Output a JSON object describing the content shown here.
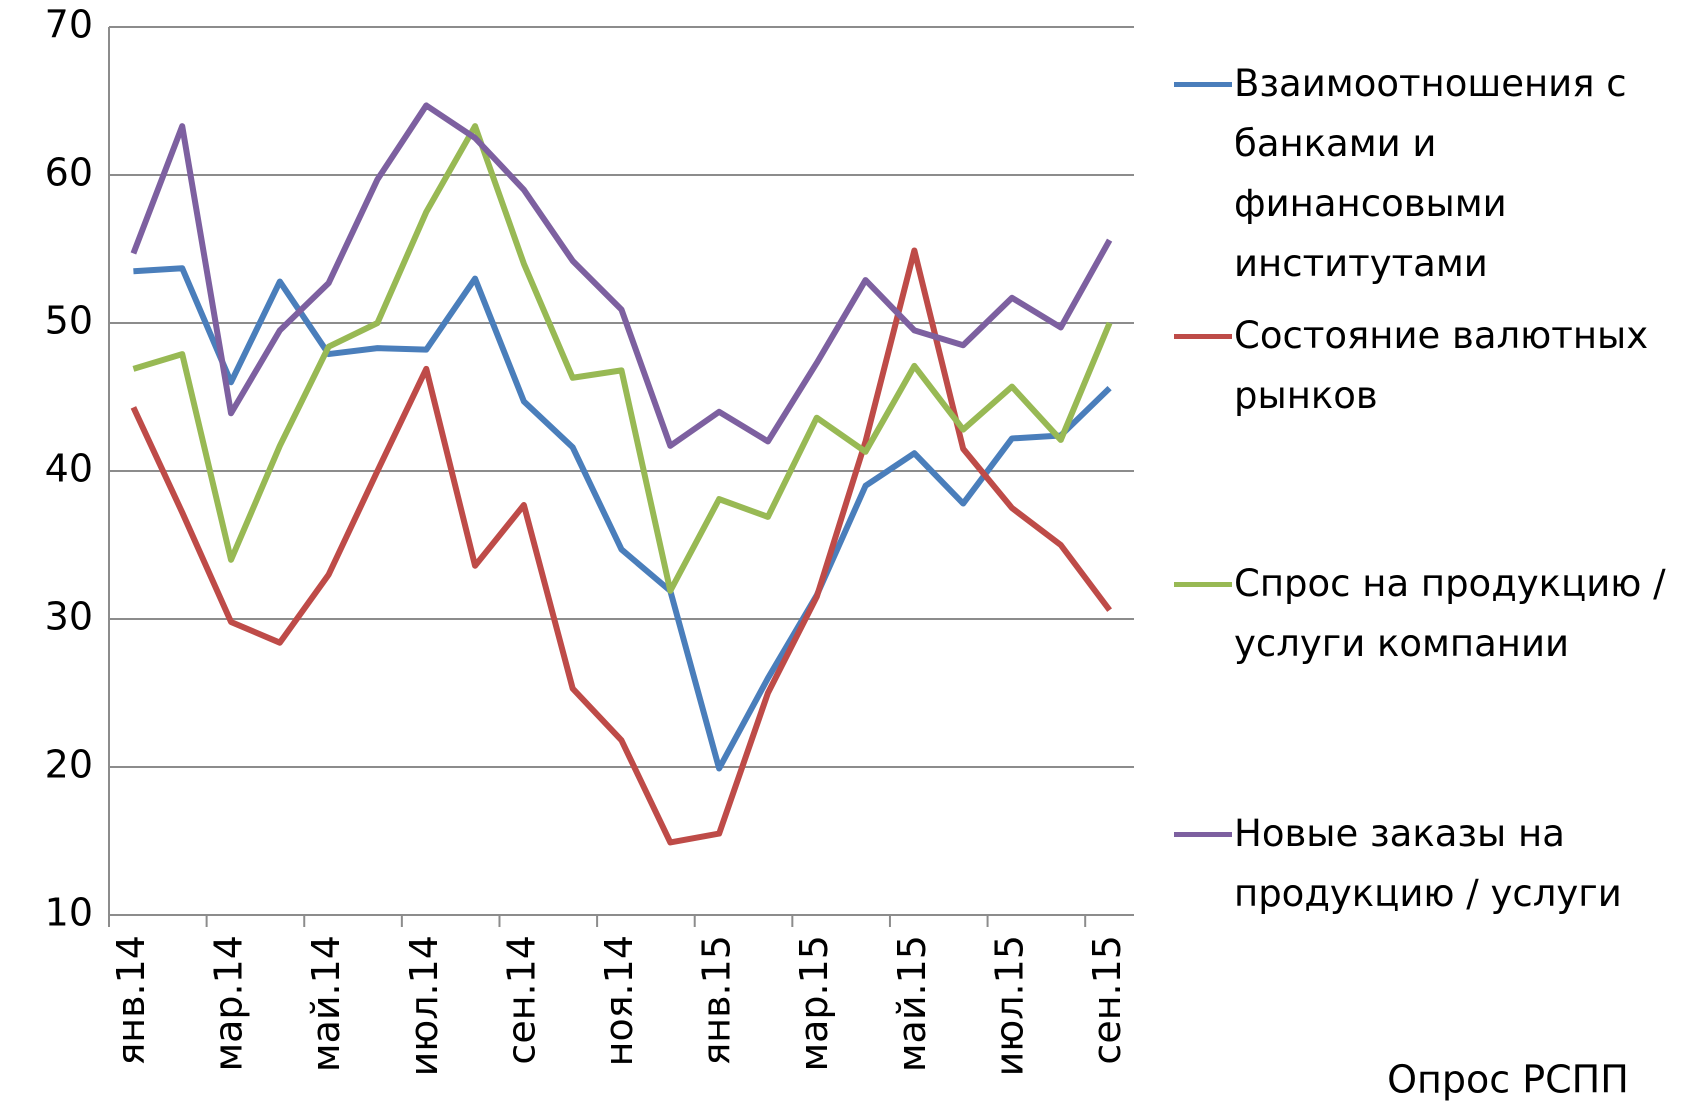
{
  "chart_data": {
    "type": "line",
    "categories": [
      "янв.14",
      null,
      "мар.14",
      null,
      "май.14",
      null,
      "июл.14",
      null,
      "сен.14",
      null,
      "ноя.14",
      null,
      "янв.15",
      null,
      "мар.15",
      null,
      "май.15",
      null,
      "июл.15",
      null,
      "сен.15"
    ],
    "series": [
      {
        "name": "Взаимоотношения с банками и финансовыми институтами",
        "color": "#4a7ebb",
        "values": [
          53.5,
          53.7,
          46,
          52.8,
          47.9,
          48.3,
          48.2,
          53,
          44.7,
          41.6,
          34.7,
          31.9,
          19.9,
          26,
          31.6,
          39,
          41.2,
          37.8,
          42.2,
          42.4,
          45.6
        ]
      },
      {
        "name": "Состояние валютных рынков",
        "color": "#be4b48",
        "values": [
          44.3,
          37.2,
          29.8,
          28.4,
          33,
          40,
          46.9,
          33.6,
          37.7,
          25.3,
          21.8,
          14.9,
          15.5,
          25,
          31.5,
          42,
          54.9,
          41.5,
          37.5,
          35,
          30.6
        ]
      },
      {
        "name": "Спрос на продукцию / услуги компании",
        "color": "#98b954",
        "values": [
          46.9,
          47.9,
          34,
          41.7,
          48.4,
          50,
          57.5,
          63.3,
          54,
          46.3,
          46.8,
          31.9,
          38.1,
          36.9,
          43.6,
          41.3,
          47.1,
          42.8,
          45.7,
          42.1,
          50
        ]
      },
      {
        "name": "Новые заказы на продукцию / услуги",
        "color": "#7d60a0",
        "values": [
          54.7,
          63.3,
          43.9,
          49.5,
          52.7,
          59.7,
          64.7,
          62.5,
          59,
          54.2,
          50.9,
          41.7,
          44,
          42,
          47.3,
          52.9,
          49.5,
          48.5,
          51.7,
          49.7,
          55.6
        ]
      }
    ],
    "ylim": [
      10,
      70
    ],
    "yticks": [
      10,
      20,
      30,
      40,
      50,
      60,
      70
    ],
    "grid": true,
    "legend": "right",
    "annotation": "Опрос РСПП"
  }
}
